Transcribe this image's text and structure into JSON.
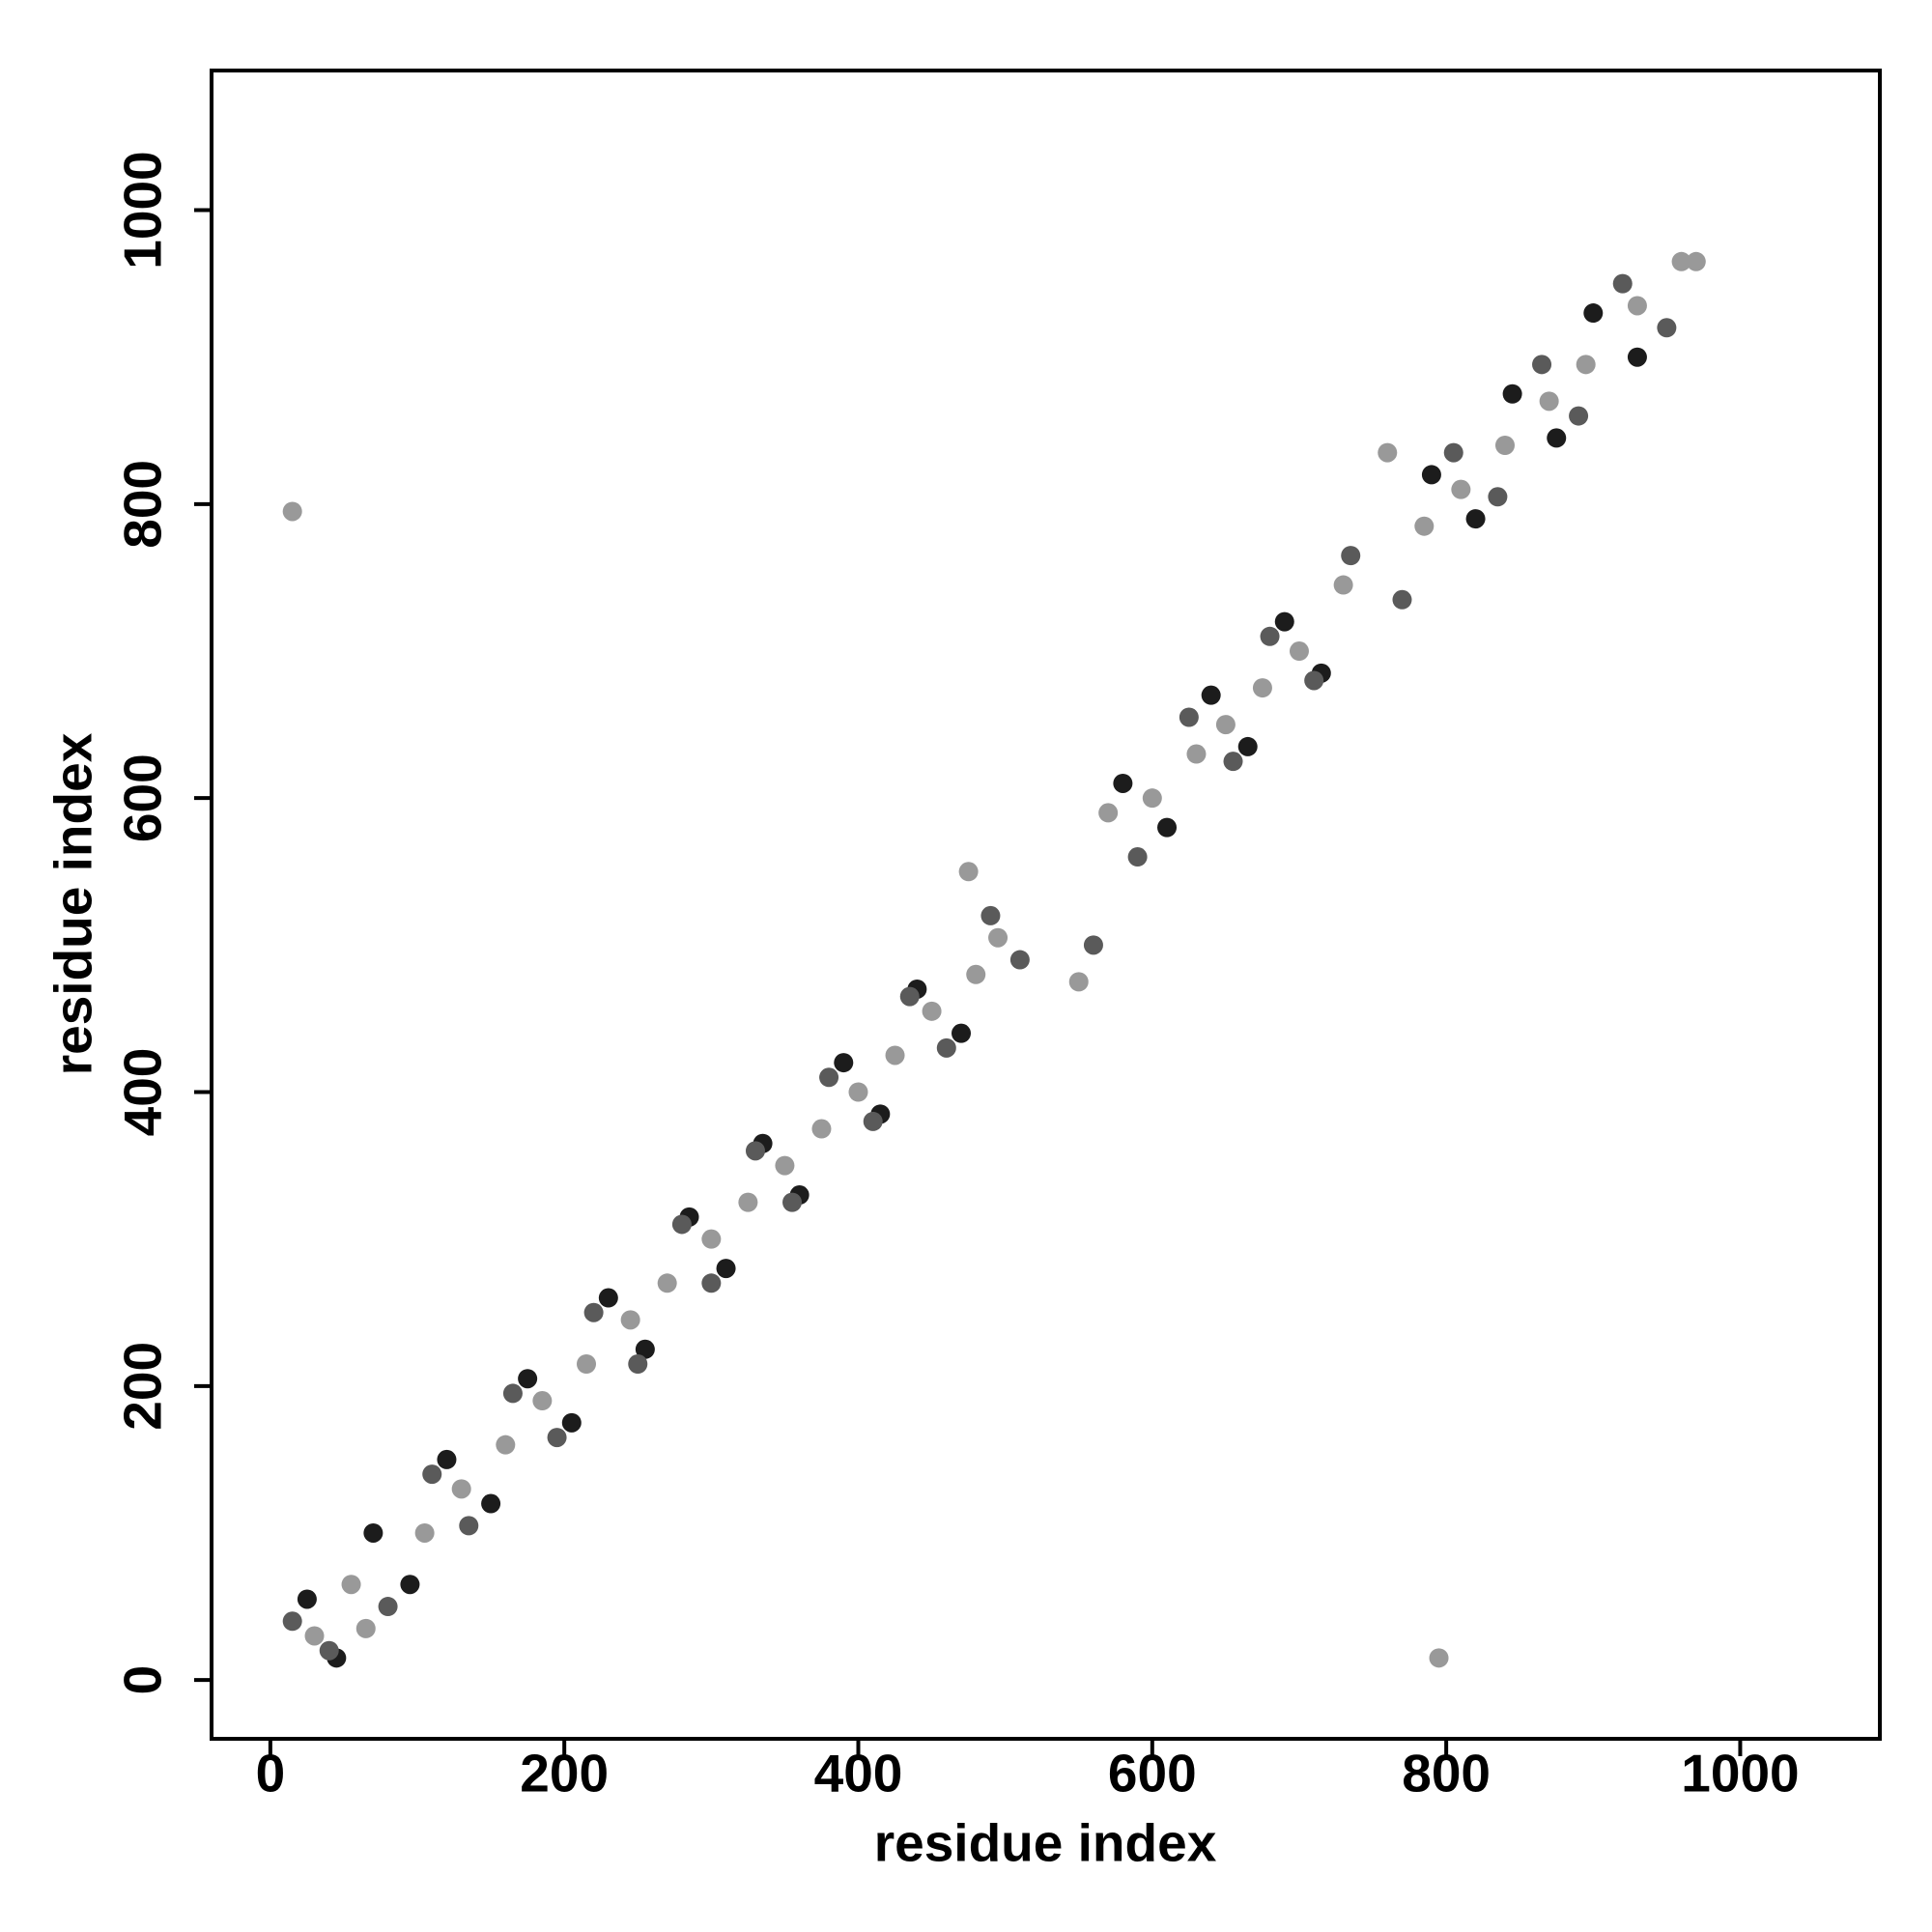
{
  "chart_data": {
    "type": "scatter",
    "xlabel": "residue index",
    "ylabel": "residue index",
    "xlim": [
      -40,
      1095
    ],
    "ylim": [
      -40,
      1095
    ],
    "xticks": [
      0,
      200,
      400,
      600,
      800,
      1000
    ],
    "yticks": [
      0,
      200,
      400,
      600,
      800,
      1000
    ],
    "grid": false,
    "series": [
      {
        "color": "#1c1c1c",
        "x": [
          25,
          45,
          70,
          95,
          120,
          150,
          175,
          205,
          230,
          255,
          285,
          310,
          335,
          360,
          390,
          415,
          440,
          470,
          580,
          610,
          640,
          665,
          690,
          715,
          790,
          820,
          845,
          875,
          900,
          930
        ],
        "y": [
          55,
          15,
          100,
          65,
          150,
          120,
          205,
          175,
          260,
          225,
          315,
          280,
          365,
          330,
          420,
          385,
          470,
          440,
          610,
          580,
          670,
          635,
          720,
          685,
          820,
          790,
          875,
          845,
          930,
          900
        ]
      },
      {
        "color": "#5a5a5a",
        "x": [
          15,
          40,
          80,
          110,
          135,
          165,
          195,
          220,
          250,
          280,
          300,
          330,
          355,
          380,
          410,
          435,
          460,
          490,
          510,
          560,
          590,
          625,
          655,
          680,
          710,
          735,
          770,
          805,
          835,
          865,
          890,
          920,
          950
        ],
        "y": [
          40,
          20,
          50,
          140,
          105,
          195,
          165,
          250,
          215,
          310,
          270,
          360,
          325,
          410,
          380,
          465,
          430,
          520,
          490,
          500,
          560,
          655,
          625,
          710,
          680,
          765,
          735,
          835,
          805,
          895,
          860,
          950,
          920
        ]
      },
      {
        "color": "#999999",
        "x": [
          30,
          55,
          65,
          105,
          130,
          160,
          185,
          215,
          245,
          270,
          300,
          325,
          350,
          375,
          400,
          425,
          450,
          480,
          495,
          475,
          550,
          570,
          600,
          630,
          650,
          675,
          700,
          730,
          760,
          785,
          810,
          840,
          870,
          895,
          930,
          960,
          970,
          15,
          795
        ],
        "y": [
          30,
          65,
          35,
          100,
          130,
          160,
          190,
          215,
          245,
          270,
          300,
          325,
          350,
          375,
          400,
          425,
          455,
          480,
          505,
          550,
          475,
          590,
          600,
          630,
          650,
          675,
          700,
          745,
          835,
          785,
          810,
          840,
          870,
          895,
          935,
          965,
          965,
          795,
          15
        ]
      }
    ]
  }
}
